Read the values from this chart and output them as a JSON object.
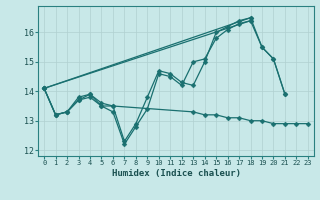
{
  "xlabel": "Humidex (Indice chaleur)",
  "background_color": "#c8e8e8",
  "grid_color": "#b0d0d0",
  "line_color": "#1a7070",
  "xlim": [
    -0.5,
    23.5
  ],
  "ylim": [
    11.8,
    16.9
  ],
  "yticks": [
    12,
    13,
    14,
    15,
    16
  ],
  "xticks": [
    0,
    1,
    2,
    3,
    4,
    5,
    6,
    7,
    8,
    9,
    10,
    11,
    12,
    13,
    14,
    15,
    16,
    17,
    18,
    19,
    20,
    21,
    22,
    23
  ],
  "series": [
    {
      "x": [
        0,
        1,
        2,
        3,
        4,
        5,
        6,
        7,
        8,
        9,
        10,
        11,
        12,
        13,
        14,
        15,
        16,
        17,
        18,
        19,
        20,
        21
      ],
      "y": [
        14.1,
        13.2,
        13.3,
        13.7,
        13.8,
        13.5,
        13.3,
        12.2,
        12.8,
        13.4,
        14.6,
        14.5,
        14.2,
        15.0,
        15.1,
        15.8,
        16.1,
        16.3,
        16.4,
        15.5,
        15.1,
        13.9
      ]
    },
    {
      "x": [
        0,
        1,
        2,
        3,
        4,
        5,
        6,
        7,
        8,
        9,
        10,
        11,
        12,
        13,
        14,
        15,
        16,
        17,
        18,
        19,
        20,
        21
      ],
      "y": [
        14.1,
        13.2,
        13.3,
        13.8,
        13.9,
        13.6,
        13.5,
        12.3,
        12.9,
        13.8,
        14.7,
        14.6,
        14.3,
        14.2,
        15.0,
        16.0,
        16.2,
        16.4,
        16.5,
        15.5,
        15.1,
        13.9
      ]
    },
    {
      "x": [
        0,
        18
      ],
      "y": [
        14.1,
        16.5
      ]
    },
    {
      "x": [
        0,
        18
      ],
      "y": [
        14.1,
        16.4
      ]
    },
    {
      "x": [
        0,
        1,
        2,
        3,
        4,
        5,
        6,
        13,
        14,
        15,
        16,
        17,
        18,
        19,
        20,
        21,
        22,
        23
      ],
      "y": [
        14.1,
        13.2,
        13.3,
        13.7,
        13.9,
        13.5,
        13.5,
        13.3,
        13.2,
        13.2,
        13.1,
        13.1,
        13.0,
        13.0,
        12.9,
        12.9,
        12.9,
        12.9
      ]
    }
  ],
  "marker_size": 2.5,
  "line_width": 0.9
}
